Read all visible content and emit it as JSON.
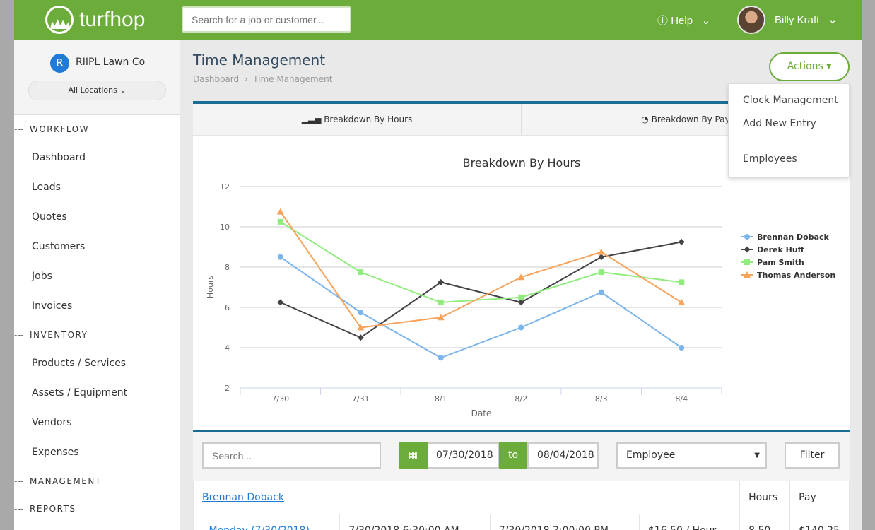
{
  "header": {
    "brand": "turfhop",
    "search_placeholder": "Search for a job or customer...",
    "help": "Help",
    "user": "Billy Kraft"
  },
  "sidebar": {
    "org_initial": "R",
    "org_name": "RIIPL Lawn Co",
    "location": "All Locations",
    "sections": [
      {
        "title": "WORKFLOW",
        "items": [
          "Dashboard",
          "Leads",
          "Quotes",
          "Customers",
          "Jobs",
          "Invoices"
        ]
      },
      {
        "title": "INVENTORY",
        "items": [
          "Products / Services",
          "Assets / Equipment",
          "Vendors",
          "Expenses"
        ]
      },
      {
        "title": "MANAGEMENT",
        "items": []
      },
      {
        "title": "REPORTS",
        "items": []
      }
    ]
  },
  "page": {
    "title": "Time Management",
    "breadcrumb": [
      "Dashboard",
      "Time Management"
    ],
    "actions": "Actions",
    "actions_menu": [
      "Clock Management",
      "Add New Entry",
      "Employees"
    ],
    "tabs": [
      "Breakdown By Hours",
      "Breakdown By Pay"
    ]
  },
  "chart_data": {
    "type": "line",
    "title": "Breakdown By Hours",
    "xlabel": "Date",
    "ylabel": "Hours",
    "ylim": [
      2,
      12
    ],
    "yticks": [
      2,
      4,
      6,
      8,
      10,
      12
    ],
    "grid": true,
    "legend": "right",
    "categories": [
      "7/30",
      "7/31",
      "8/1",
      "8/2",
      "8/3",
      "8/4"
    ],
    "series": [
      {
        "name": "Brennan Doback",
        "color": "#7cb5ec",
        "marker": "circle",
        "values": [
          8.5,
          5.75,
          3.5,
          5,
          6.75,
          4
        ]
      },
      {
        "name": "Derek Huff",
        "color": "#434348",
        "marker": "diamond",
        "values": [
          6.25,
          4.5,
          7.25,
          6.25,
          8.5,
          9.25
        ]
      },
      {
        "name": "Pam Smith",
        "color": "#90ed7d",
        "marker": "square",
        "values": [
          10.25,
          7.75,
          6.25,
          6.5,
          7.75,
          7.25
        ]
      },
      {
        "name": "Thomas Anderson",
        "color": "#f7a35c",
        "marker": "triangle",
        "values": [
          10.75,
          5,
          5.5,
          7.5,
          8.75,
          6.25
        ]
      }
    ]
  },
  "filters": {
    "search_placeholder": "Search...",
    "from": "07/30/2018",
    "to_label": "to",
    "to": "08/04/2018",
    "employee": "Employee",
    "filter": "Filter"
  },
  "table": {
    "employee": "Brennan Doback",
    "hours_header": "Hours",
    "pay_header": "Pay",
    "rows": [
      {
        "day": "- Monday (7/30/2018)",
        "in": "7/30/2018 6:30:00 AM",
        "out": "7/30/2018 3:00:00 PM",
        "rate": "$16.50 / Hour",
        "hours": "8.50",
        "pay": "$140.25"
      }
    ]
  }
}
